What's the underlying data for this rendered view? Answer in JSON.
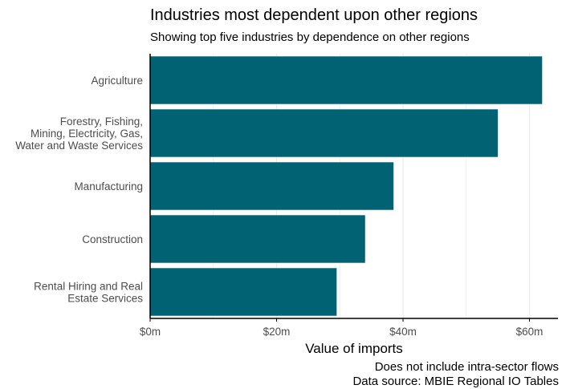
{
  "chart_data": {
    "type": "bar",
    "orientation": "horizontal",
    "title": "Industries most dependent upon other regions",
    "subtitle": "Showing top five industries by dependence on other regions",
    "xlabel": "Value of imports",
    "ylabel": "",
    "categories": [
      "Agriculture",
      "Forestry, Fishing,\nMining, Electricity, Gas,\nWater and Waste Services",
      "Manufacturing",
      "Construction",
      "Rental Hiring and Real\nEstate Services"
    ],
    "values": [
      62,
      55,
      38.5,
      34,
      29.5
    ],
    "value_unit": "$m",
    "xlim": [
      0,
      64.5
    ],
    "x_ticks": [
      0,
      20,
      40,
      60
    ],
    "x_tick_labels": [
      "$0m",
      "$20m",
      "$40m",
      "$60m"
    ],
    "grid": true,
    "bar_color": "#006272",
    "captions": [
      "Does not include intra-sector flows",
      "Data source: MBIE Regional IO Tables"
    ]
  }
}
